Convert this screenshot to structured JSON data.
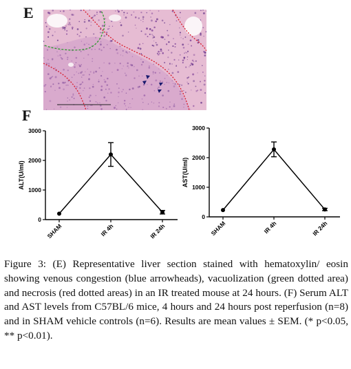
{
  "panel_e_label": "E",
  "panel_f_label": "F",
  "micrograph": {
    "description_colors": {
      "tissue": "#e6bcd3",
      "nuclei": "#6a3a8c",
      "necrosis_outline": "#d81b2b",
      "vacuolization_outline": "#2f9a2f",
      "arrowheads": "#1a1a6e"
    }
  },
  "chart_data": [
    {
      "type": "line",
      "categories": [
        "SHAM",
        "IR 4h",
        "IR 24h"
      ],
      "values": [
        200,
        2200,
        250
      ],
      "errors": [
        0,
        400,
        60
      ],
      "title": "",
      "xlabel": "",
      "ylabel": "ALT(U/ml)",
      "ylim": [
        0,
        3000
      ],
      "yticks": [
        "0",
        "1000",
        "2000",
        "3000"
      ],
      "grid": false
    },
    {
      "type": "line",
      "categories": [
        "SHAM",
        "IR 4h",
        "IR 24h"
      ],
      "values": [
        230,
        2280,
        250
      ],
      "errors": [
        0,
        250,
        40
      ],
      "title": "",
      "xlabel": "",
      "ylabel": "AST(U/ml)",
      "ylim": [
        0,
        3000
      ],
      "yticks": [
        "0",
        "1000",
        "2000",
        "3000"
      ],
      "grid": false
    }
  ],
  "caption": "Figure 3: (E) Representative liver section stained with hematoxylin/ eosin showing venous congestion (blue arrowheads), vacuolization (green dotted area) and necrosis (red dotted areas) in an IR treated mouse at 24 hours. (F) Serum ALT and AST levels from C57BL/6 mice, 4 hours and 24 hours post reperfusion (n=8) and in SHAM vehicle controls (n=6). Results are mean values ± SEM. (* p<0.05, ** p<0.01)."
}
